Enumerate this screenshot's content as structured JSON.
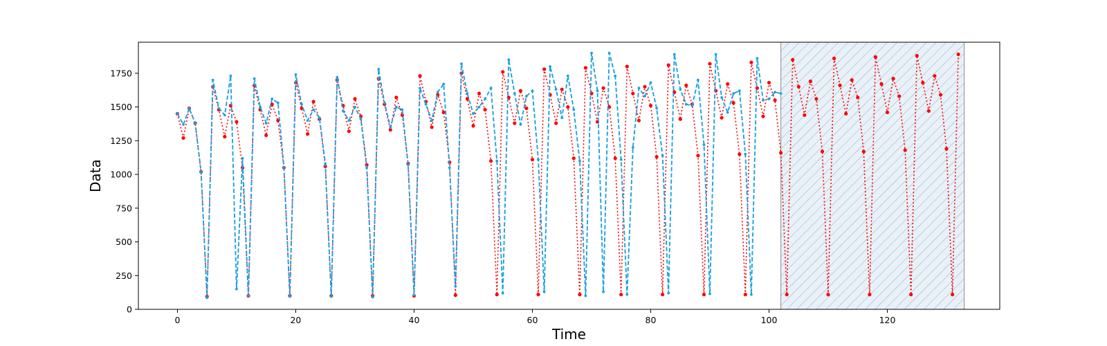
{
  "chart_data": {
    "type": "line",
    "title": "",
    "xlabel": "Time",
    "ylabel": "Data",
    "xlim": [
      -6.6,
      139.0
    ],
    "ylim": [
      0,
      1980
    ],
    "xticks": [
      0,
      20,
      40,
      60,
      80,
      100,
      120
    ],
    "yticks": [
      0,
      250,
      500,
      750,
      1000,
      1250,
      1500,
      1750
    ],
    "grid": false,
    "legend": "none",
    "shaded_region": {
      "x_start": 102,
      "x_end": 133,
      "pattern": "diagonal-hatch",
      "fill": "#e8f1f8",
      "hatch_color": "#9aaab8"
    },
    "series": [
      {
        "style": "dotted",
        "color": "#ff0000",
        "marker": "circle",
        "x_start": 0,
        "values": [
          1450,
          1270,
          1490,
          1380,
          1020,
          95,
          1650,
          1480,
          1280,
          1510,
          1390,
          1050,
          100,
          1660,
          1480,
          1290,
          1520,
          1400,
          1050,
          100,
          1680,
          1490,
          1300,
          1540,
          1410,
          1060,
          100,
          1700,
          1510,
          1320,
          1560,
          1430,
          1070,
          100,
          1710,
          1520,
          1330,
          1570,
          1440,
          1080,
          100,
          1730,
          1540,
          1350,
          1590,
          1460,
          1090,
          105,
          1750,
          1560,
          1360,
          1600,
          1480,
          1100,
          110,
          1760,
          1570,
          1380,
          1620,
          1490,
          1110,
          110,
          1780,
          1590,
          1380,
          1630,
          1500,
          1120,
          110,
          1790,
          1600,
          1390,
          1640,
          1500,
          1120,
          110,
          1800,
          1600,
          1400,
          1650,
          1510,
          1130,
          110,
          1810,
          1610,
          1410,
          1660,
          1520,
          1140,
          110,
          1820,
          1620,
          1420,
          1670,
          1530,
          1150,
          110,
          1830,
          1640,
          1430,
          1680,
          1550,
          1160,
          110,
          1850,
          1650,
          1440,
          1690,
          1560,
          1170,
          110,
          1860,
          1660,
          1450,
          1700,
          1570,
          1170,
          110,
          1870,
          1670,
          1460,
          1710,
          1580,
          1180,
          110,
          1880,
          1680,
          1470,
          1730,
          1590,
          1190,
          110,
          1890
        ]
      },
      {
        "style": "dashed",
        "color": "#1ba1e2",
        "marker": "small-circle",
        "x_start": 0,
        "values": [
          1450,
          1370,
          1490,
          1380,
          1020,
          85,
          1700,
          1490,
          1440,
          1730,
          150,
          1120,
          100,
          1710,
          1500,
          1380,
          1560,
          1530,
          1050,
          95,
          1740,
          1520,
          1400,
          1480,
          1420,
          1080,
          95,
          1720,
          1470,
          1400,
          1500,
          1410,
          1050,
          90,
          1780,
          1530,
          1350,
          1500,
          1480,
          1070,
          105,
          1640,
          1520,
          1400,
          1610,
          1670,
          1050,
          170,
          1820,
          1600,
          1450,
          1500,
          1560,
          1640,
          1100,
          120,
          1850,
          1600,
          1370,
          1580,
          1620,
          1110,
          130,
          1800,
          1630,
          1420,
          1730,
          1480,
          1100,
          100,
          1900,
          1620,
          130,
          1900,
          1730,
          1110,
          110,
          1200,
          1640,
          1580,
          1680,
          1490,
          1140,
          120,
          1890,
          1630,
          1520,
          1510,
          1700,
          1220,
          115,
          1890,
          1570,
          1460,
          1600,
          1620,
          1150,
          110,
          1860,
          1550,
          1560,
          1610,
          1600
        ]
      }
    ]
  }
}
